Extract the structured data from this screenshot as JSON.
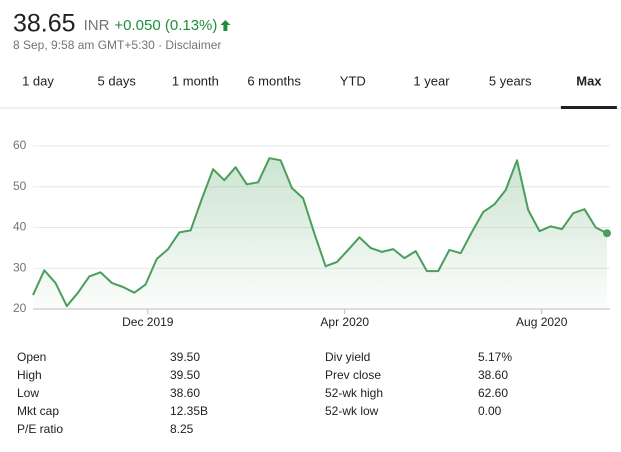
{
  "header": {
    "price": "38.65",
    "currency": "INR",
    "change": "+0.050 (0.13%)",
    "subtitle": "8 Sep, 9:58 am GMT+5:30 · Disclaimer"
  },
  "tabs": [
    "1 day",
    "5 days",
    "1 month",
    "6 months",
    "YTD",
    "1 year",
    "5 years",
    "Max"
  ],
  "selected_tab": 7,
  "chart_data": {
    "type": "area",
    "values": [
      23.4,
      29.5,
      26.4,
      20.7,
      24,
      28,
      29,
      26.4,
      25.4,
      24,
      26,
      32.3,
      34.7,
      38.8,
      39.3,
      47,
      54.3,
      51.6,
      54.8,
      50.6,
      51.1,
      57,
      56.5,
      49.7,
      47.2,
      38.5,
      30.5,
      31.5,
      34.5,
      37.6,
      35,
      34,
      34.7,
      32.5,
      34.2,
      29.3,
      29.3,
      34.5,
      33.7,
      38.9,
      43.8,
      45.7,
      49.2,
      56.5,
      44.3,
      39.1,
      40.3,
      39.6,
      43.5,
      44.5,
      40,
      38.6
    ],
    "color": "#4a9e5c",
    "xlim": [
      0,
      51
    ],
    "xticks": [
      {
        "value": 10.2,
        "label": "Dec 2019"
      },
      {
        "value": 27.7,
        "label": "Apr 2020"
      },
      {
        "value": 45.2,
        "label": "Aug 2020"
      }
    ],
    "ylim": [
      20,
      60
    ],
    "yticks": [
      20,
      30,
      40,
      50,
      60
    ],
    "grid": true
  },
  "stats": {
    "left": [
      [
        "Open",
        "39.50"
      ],
      [
        "High",
        "39.50"
      ],
      [
        "Low",
        "38.60"
      ],
      [
        "Mkt cap",
        "12.35B"
      ],
      [
        "P/E ratio",
        "8.25"
      ]
    ],
    "right": [
      [
        "Div yield",
        "5.17%"
      ],
      [
        "Prev close",
        "38.60"
      ],
      [
        "52-wk high",
        "62.60"
      ],
      [
        "52-wk low",
        "0.00"
      ]
    ]
  }
}
